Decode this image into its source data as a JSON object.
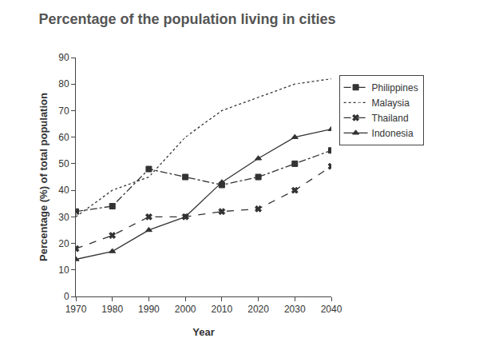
{
  "chart_data": {
    "type": "line",
    "title": "Percentage of the population living in cities",
    "x_label": "Year",
    "y_label": "Percentage (%) of total population",
    "x": [
      1970,
      1980,
      1990,
      2000,
      2010,
      2020,
      2030,
      2040
    ],
    "series": [
      {
        "name": "Philippines",
        "color": "#333333",
        "marker": "square",
        "line_style": "dashdot",
        "values": [
          32,
          34,
          48,
          45,
          42,
          45,
          50,
          55
        ]
      },
      {
        "name": "Malaysia",
        "color": "#333333",
        "marker": "diamond-open",
        "line_style": "dot",
        "values": [
          30,
          40,
          45,
          60,
          70,
          75,
          80,
          82
        ]
      },
      {
        "name": "Thailand",
        "color": "#333333",
        "marker": "x",
        "line_style": "dash",
        "values": [
          18,
          23,
          30,
          30,
          32,
          33,
          40,
          49
        ]
      },
      {
        "name": "Indonesia",
        "color": "#333333",
        "marker": "triangle-up",
        "line_style": "solid",
        "values": [
          14,
          17,
          25,
          30,
          43,
          52,
          60,
          63
        ]
      }
    ],
    "xlim": [
      1970,
      2040
    ],
    "xticks": [
      1970,
      1980,
      1990,
      2000,
      2010,
      2020,
      2030,
      2040
    ],
    "ylim": [
      0,
      90
    ],
    "yticks": [
      0,
      10,
      20,
      30,
      40,
      50,
      60,
      70,
      80,
      90
    ],
    "grid": false,
    "legend": "right"
  }
}
